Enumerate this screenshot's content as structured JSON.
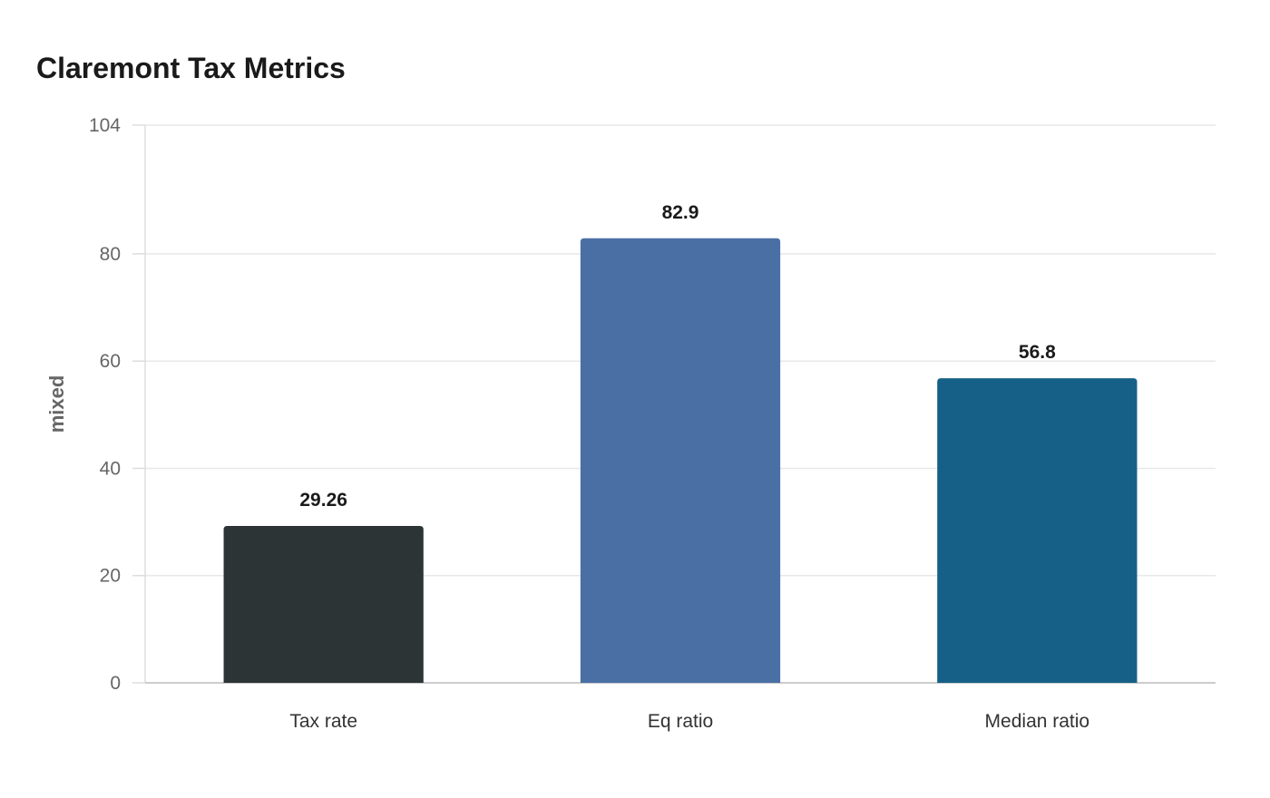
{
  "chart_data": {
    "type": "bar",
    "title": "Claremont Tax Metrics",
    "xlabel": "",
    "ylabel": "mixed",
    "categories": [
      "Tax rate",
      "Eq ratio",
      "Median ratio"
    ],
    "values": [
      29.26,
      82.9,
      56.8
    ],
    "value_labels": [
      "29.26",
      "82.9",
      "56.8"
    ],
    "colors": [
      "#2d3436",
      "#4a6fa5",
      "#166088"
    ],
    "ylim": [
      0,
      104
    ],
    "yticks": [
      0,
      20,
      40,
      60,
      80,
      104
    ],
    "grid": true,
    "legend": "none"
  }
}
